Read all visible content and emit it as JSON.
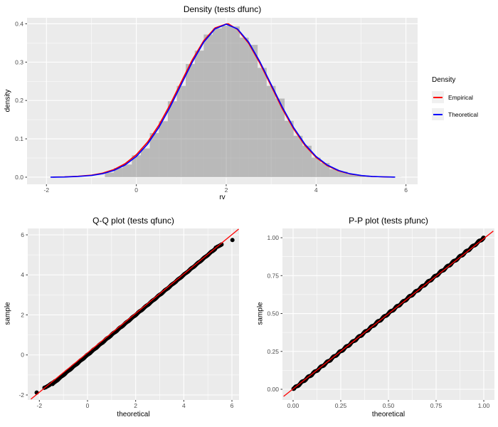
{
  "figure": {
    "background": "#ffffff"
  },
  "colors": {
    "panel_background": "#EBEBEB",
    "gridline": "#FFFFFF",
    "tick_text": "#4D4D4D",
    "tick_mark": "#333333",
    "histogram_fill": "rgba(105,105,105,0.38)",
    "empirical_red": "#FF0000",
    "theoretical_blue": "#0000FF",
    "point_black": "#000000"
  },
  "chart_data": [
    {
      "id": "density",
      "type": "area",
      "title": "Density (tests dfunc)",
      "xlabel": "rv",
      "ylabel": "density",
      "x_ticks": {
        "values": [
          -2,
          0,
          2,
          4,
          6
        ],
        "labels": [
          "-2",
          "0",
          "2",
          "4",
          "6"
        ]
      },
      "y_ticks": {
        "values": [
          0,
          0.1,
          0.2,
          0.3,
          0.4
        ],
        "labels": [
          "0.0",
          "0.1",
          "0.2",
          "0.3",
          "0.4"
        ]
      },
      "x_domain": [
        -2.432,
        6.259
      ],
      "y_domain": [
        -0.0186,
        0.4156
      ],
      "grid": true,
      "legend": {
        "title": "Density",
        "position": "right",
        "items": [
          {
            "label": "Empirical",
            "color": "#FF0000"
          },
          {
            "label": "Theoretical",
            "color": "#0000FF"
          }
        ]
      },
      "histogram": {
        "start": -0.7,
        "binwidth": 0.2,
        "fill": "rgba(105,105,105,0.38)",
        "heights": [
          0.012,
          0.024,
          0.033,
          0.057,
          0.075,
          0.115,
          0.146,
          0.198,
          0.238,
          0.295,
          0.33,
          0.372,
          0.388,
          0.395,
          0.393,
          0.364,
          0.345,
          0.285,
          0.238,
          0.205,
          0.147,
          0.108,
          0.082,
          0.051,
          0.037,
          0.021,
          0.0145,
          0.007,
          0.0045,
          0.002,
          0.0013,
          0.0007,
          0.0004
        ]
      },
      "series": [
        {
          "name": "Empirical",
          "color": "#FF0000",
          "width": 1.6,
          "points": [
            [
              -1.85,
              0.0003
            ],
            [
              -1.6,
              0.0008
            ],
            [
              -1.3,
              0.0024
            ],
            [
              -1.0,
              0.0052
            ],
            [
              -0.75,
              0.0105
            ],
            [
              -0.5,
              0.0198
            ],
            [
              -0.25,
              0.0352
            ],
            [
              0,
              0.0585
            ],
            [
              0.25,
              0.0915
            ],
            [
              0.5,
              0.1355
            ],
            [
              0.75,
              0.189
            ],
            [
              1,
              0.2485
            ],
            [
              1.25,
              0.307
            ],
            [
              1.5,
              0.356
            ],
            [
              1.75,
              0.389
            ],
            [
              2,
              0.3995
            ],
            [
              2.05,
              0.3998
            ],
            [
              2.25,
              0.385
            ],
            [
              2.5,
              0.349
            ],
            [
              2.75,
              0.297
            ],
            [
              3,
              0.238
            ],
            [
              3.25,
              0.178
            ],
            [
              3.5,
              0.126
            ],
            [
              3.75,
              0.083
            ],
            [
              4,
              0.0515
            ],
            [
              4.25,
              0.03
            ],
            [
              4.5,
              0.0165
            ],
            [
              4.75,
              0.0085
            ],
            [
              5,
              0.0042
            ],
            [
              5.25,
              0.0019
            ],
            [
              5.5,
              0.0009
            ],
            [
              5.72,
              0.0004
            ]
          ]
        },
        {
          "name": "Theoretical",
          "color": "#0000FF",
          "width": 1.6,
          "points": [
            [
              -1.9,
              0.0002
            ],
            [
              -1.6,
              0.0006
            ],
            [
              -1.3,
              0.002
            ],
            [
              -1.0,
              0.0044
            ],
            [
              -0.75,
              0.0091
            ],
            [
              -0.5,
              0.0175
            ],
            [
              -0.25,
              0.0317
            ],
            [
              0,
              0.054
            ],
            [
              0.25,
              0.0862
            ],
            [
              0.5,
              0.1295
            ],
            [
              0.75,
              0.1826
            ],
            [
              1,
              0.242
            ],
            [
              1.25,
              0.3011
            ],
            [
              1.5,
              0.3521
            ],
            [
              1.75,
              0.3867
            ],
            [
              2,
              0.3989
            ],
            [
              2.25,
              0.3867
            ],
            [
              2.5,
              0.3521
            ],
            [
              2.75,
              0.3011
            ],
            [
              3,
              0.242
            ],
            [
              3.25,
              0.1826
            ],
            [
              3.5,
              0.1295
            ],
            [
              3.75,
              0.0862
            ],
            [
              4,
              0.054
            ],
            [
              4.25,
              0.0317
            ],
            [
              4.5,
              0.0175
            ],
            [
              4.75,
              0.0091
            ],
            [
              5,
              0.0044
            ],
            [
              5.25,
              0.002
            ],
            [
              5.5,
              0.0009
            ],
            [
              5.75,
              0.0004
            ]
          ]
        }
      ]
    },
    {
      "id": "qq",
      "type": "scatter",
      "title": "Q-Q plot (tests qfunc)",
      "xlabel": "theoretical",
      "ylabel": "sample",
      "x_ticks": {
        "values": [
          -2,
          0,
          2,
          4,
          6
        ],
        "labels": [
          "-2",
          "0",
          "2",
          "4",
          "6"
        ]
      },
      "y_ticks": {
        "values": [
          -2,
          0,
          2,
          4,
          6
        ],
        "labels": [
          "-2",
          "0",
          "2",
          "4",
          "6"
        ]
      },
      "x_domain": [
        -2.482,
        6.295
      ],
      "y_domain": [
        -2.249,
        6.32
      ],
      "grid": true,
      "marker_color": "#000000",
      "points_relation": "y approx equals x",
      "band": {
        "x_start": -1.45,
        "x_end": 5.3,
        "n": 175,
        "wiggle": 0.012
      },
      "extra_points": [
        [
          -2.11,
          -1.88
        ],
        [
          -1.79,
          -1.64
        ],
        [
          -1.73,
          -1.61
        ],
        [
          -1.66,
          -1.56
        ],
        [
          -1.6,
          -1.52
        ],
        [
          -1.55,
          -1.47
        ],
        [
          -1.5,
          -1.43
        ],
        [
          -1.45,
          -1.4
        ],
        [
          -1.4,
          -1.36
        ],
        [
          -1.35,
          -1.31
        ],
        [
          5.33,
          5.36
        ],
        [
          5.4,
          5.41
        ],
        [
          5.47,
          5.45
        ],
        [
          5.53,
          5.49
        ],
        [
          5.57,
          5.52
        ],
        [
          6.02,
          5.74
        ]
      ],
      "ref_line": {
        "x1": -2.35,
        "y1": -2.21,
        "x2": 6.28,
        "y2": 6.29,
        "color": "#FF0000"
      }
    },
    {
      "id": "pp",
      "type": "scatter",
      "title": "P-P plot (tests pfunc)",
      "xlabel": "theoretical",
      "ylabel": "sample",
      "x_ticks": {
        "values": [
          0,
          0.25,
          0.5,
          0.75,
          1
        ],
        "labels": [
          "0.00",
          "0.25",
          "0.50",
          "0.75",
          "1.00"
        ]
      },
      "y_ticks": {
        "values": [
          0,
          0.25,
          0.5,
          0.75,
          1
        ],
        "labels": [
          "0.00",
          "0.25",
          "0.50",
          "0.75",
          "1.00"
        ]
      },
      "x_domain": [
        -0.056,
        1.056
      ],
      "y_domain": [
        -0.0704,
        1.0613
      ],
      "grid": true,
      "marker_color": "#000000",
      "points_relation": "y approx equals x",
      "band": {
        "x_start": 0.004,
        "x_end": 0.996,
        "n": 210,
        "wiggle": 0.004
      },
      "extra_points": [
        [
          0.002,
          0.003
        ],
        [
          0.005,
          0.006
        ],
        [
          0.997,
          0.998
        ],
        [
          0.999,
          1.0
        ]
      ],
      "ref_line": {
        "x1": -0.05,
        "y1": -0.047,
        "x2": 1.05,
        "y2": 1.044,
        "color": "#FF0000"
      }
    }
  ]
}
